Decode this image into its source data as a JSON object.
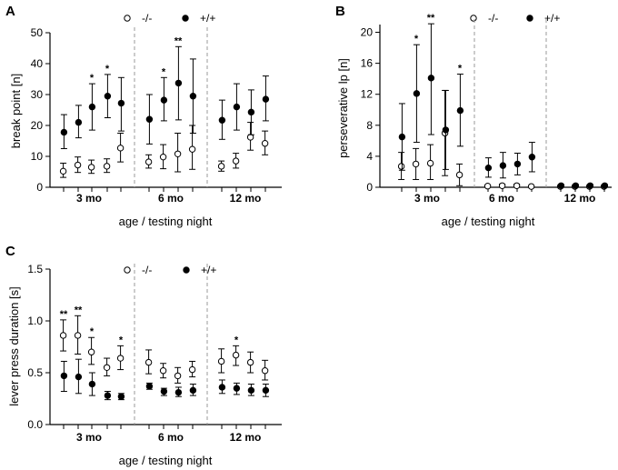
{
  "chart_data": [
    {
      "panel": "A",
      "type": "scatter",
      "ylabel": "break point [n]",
      "xlabel": "age / testing night",
      "ylim": [
        0,
        50
      ],
      "yticks": [
        0,
        10,
        20,
        30,
        40,
        50
      ],
      "ytick_labels": [
        "0",
        "10",
        "20",
        "30",
        "40",
        "50"
      ],
      "groups": [
        "3 mo",
        "6 mo",
        "12 mo"
      ],
      "legend": [
        "-/-",
        "+/+"
      ],
      "series": [
        {
          "name": "-/-",
          "marker": "open",
          "points": [
            [
              5.2,
              3.2,
              7.8
            ],
            [
              7.2,
              4.8,
              9.8
            ],
            [
              6.5,
              4.5,
              8.8
            ],
            [
              6.8,
              4.8,
              9.2
            ],
            [
              12.7,
              8.2,
              17.5
            ],
            [
              8.2,
              6.2,
              10.5
            ],
            [
              9.8,
              6.0,
              13.8
            ],
            [
              10.8,
              5.0,
              17.5
            ],
            [
              12.3,
              5.8,
              20.0
            ],
            [
              6.8,
              5.2,
              8.5
            ],
            [
              8.5,
              6.2,
              11.0
            ],
            [
              16.2,
              12.0,
              21.0
            ],
            [
              14.2,
              10.5,
              18.2
            ]
          ]
        },
        {
          "name": "+/+",
          "marker": "filled",
          "points": [
            [
              17.8,
              12.5,
              23.5
            ],
            [
              21.0,
              16.0,
              26.5
            ],
            [
              26.0,
              18.5,
              33.5
            ],
            [
              29.5,
              22.5,
              36.5
            ],
            [
              27.2,
              18.2,
              35.5
            ],
            [
              22.0,
              14.0,
              30.0
            ],
            [
              28.2,
              21.5,
              35.5
            ],
            [
              33.7,
              21.8,
              45.5
            ],
            [
              29.5,
              17.5,
              41.5
            ],
            [
              21.7,
              15.5,
              28.2
            ],
            [
              26.0,
              18.5,
              33.5
            ],
            [
              24.3,
              17.0,
              31.5
            ],
            [
              28.5,
              21.5,
              36.0
            ]
          ]
        }
      ],
      "significance": [
        "",
        "",
        "*",
        "*",
        "",
        "",
        "*",
        "**",
        "",
        "",
        "",
        "",
        ""
      ],
      "group_label": "3 mo"
    },
    {
      "panel": "B",
      "type": "scatter",
      "ylabel": "perseverative lp  [n]",
      "xlabel": "age / testing night",
      "ylim": [
        0,
        21
      ],
      "yticks": [
        0,
        4,
        8,
        12,
        16,
        20
      ],
      "ytick_labels": [
        "0",
        "4",
        "8",
        "12",
        "16",
        "20"
      ],
      "groups": [
        "3 mo",
        "6 mo",
        "12 mo"
      ],
      "legend": [
        "-/-",
        "+/+"
      ],
      "series": [
        {
          "name": "-/-",
          "marker": "open",
          "points": [
            [
              2.7,
              1.0,
              4.5
            ],
            [
              3.0,
              1.0,
              5.0
            ],
            [
              3.1,
              1.0,
              5.5
            ],
            [
              7.0,
              1.5,
              12.5
            ],
            [
              1.6,
              0.2,
              3.0
            ],
            [
              0.15,
              0,
              0.3
            ],
            [
              0.2,
              0,
              0.4
            ],
            [
              0.2,
              0,
              0.4
            ],
            [
              0.1,
              0,
              0.2
            ],
            [
              0.1,
              0,
              0.2
            ],
            [
              0.1,
              0,
              0.2
            ],
            [
              0.1,
              0,
              0.2
            ],
            [
              0.1,
              0,
              0.2
            ]
          ]
        },
        {
          "name": "+/+",
          "marker": "filled",
          "points": [
            [
              6.5,
              2.2,
              10.8
            ],
            [
              12.1,
              5.8,
              18.4
            ],
            [
              14.1,
              6.8,
              21.1
            ],
            [
              7.4,
              2.3,
              12.5
            ],
            [
              9.9,
              5.3,
              14.6
            ],
            [
              2.5,
              1.3,
              3.8
            ],
            [
              2.8,
              1.2,
              4.5
            ],
            [
              3.0,
              1.6,
              4.4
            ],
            [
              3.9,
              2.0,
              5.8
            ],
            [
              0.2,
              0,
              0.35
            ],
            [
              0.2,
              0,
              0.35
            ],
            [
              0.2,
              0,
              0.35
            ],
            [
              0.2,
              0,
              0.35
            ]
          ]
        }
      ],
      "significance": [
        "",
        "*",
        "**",
        "",
        "*",
        "",
        "",
        "",
        "",
        "",
        "",
        "",
        ""
      ]
    },
    {
      "panel": "C",
      "type": "scatter",
      "ylabel": "lever press duration [s]",
      "xlabel": "age / testing night",
      "ylim": [
        0,
        1.5
      ],
      "yticks": [
        0,
        0.5,
        1.0,
        1.5
      ],
      "ytick_labels": [
        "0.0",
        "0.5",
        "1.0",
        "1.5"
      ],
      "groups": [
        "3 mo",
        "6 mo",
        "12 mo"
      ],
      "legend": [
        "-/-",
        "+/+"
      ],
      "series": [
        {
          "name": "-/-",
          "marker": "open",
          "points": [
            [
              0.86,
              0.71,
              1.01
            ],
            [
              0.86,
              0.68,
              1.05
            ],
            [
              0.7,
              0.58,
              0.84
            ],
            [
              0.55,
              0.47,
              0.64
            ],
            [
              0.64,
              0.53,
              0.76
            ],
            [
              0.6,
              0.49,
              0.72
            ],
            [
              0.52,
              0.45,
              0.59
            ],
            [
              0.47,
              0.4,
              0.55
            ],
            [
              0.53,
              0.46,
              0.61
            ],
            [
              0.61,
              0.5,
              0.73
            ],
            [
              0.67,
              0.57,
              0.76
            ],
            [
              0.6,
              0.5,
              0.7
            ],
            [
              0.52,
              0.43,
              0.62
            ]
          ]
        },
        {
          "name": "+/+",
          "marker": "filled",
          "points": [
            [
              0.47,
              0.32,
              0.61
            ],
            [
              0.46,
              0.3,
              0.63
            ],
            [
              0.39,
              0.28,
              0.5
            ],
            [
              0.28,
              0.24,
              0.32
            ],
            [
              0.27,
              0.24,
              0.3
            ],
            [
              0.37,
              0.34,
              0.4
            ],
            [
              0.32,
              0.28,
              0.35
            ],
            [
              0.31,
              0.27,
              0.36
            ],
            [
              0.33,
              0.28,
              0.39
            ],
            [
              0.36,
              0.3,
              0.43
            ],
            [
              0.35,
              0.29,
              0.4
            ],
            [
              0.33,
              0.28,
              0.39
            ],
            [
              0.33,
              0.27,
              0.39
            ]
          ]
        }
      ],
      "significance": [
        "**",
        "**",
        "*",
        "",
        "*",
        "",
        "",
        "",
        "",
        "",
        "*",
        "",
        ""
      ]
    }
  ],
  "colors": {
    "ink": "#000000",
    "separator": "#999999",
    "background": "#ffffff"
  }
}
